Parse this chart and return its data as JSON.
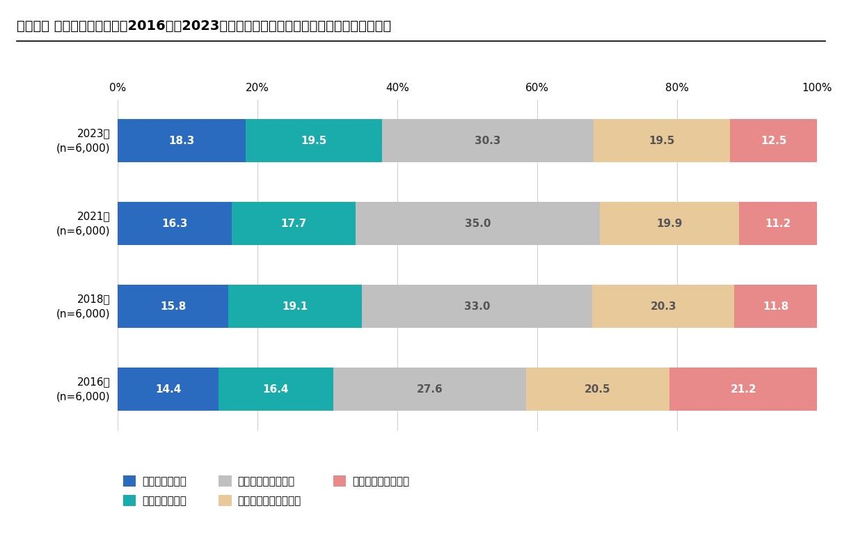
{
  "title": "《個人》 シニアの就労意欲（2016年～2023年の推移）　　（単一回答）《対象者：全員》",
  "years": [
    "2023年\n(n=6,000)",
    "2021年\n(n=6,000)",
    "2018年\n(n=6,000)",
    "2016年\n(n=6,000)"
  ],
  "categories": [
    "ぜひ就労したい",
    "やや就労したい",
    "どちらともいえない",
    "あまり就労したくない",
    "全く就労したくない"
  ],
  "colors": [
    "#2b6bbf",
    "#1aacaa",
    "#c0c0c0",
    "#e8c99a",
    "#e88a8a"
  ],
  "data": [
    [
      18.3,
      19.5,
      30.3,
      19.5,
      12.5
    ],
    [
      16.3,
      17.7,
      35.0,
      19.9,
      11.2
    ],
    [
      15.8,
      19.1,
      33.0,
      20.3,
      11.8
    ],
    [
      14.4,
      16.4,
      27.6,
      20.5,
      21.2
    ]
  ],
  "background_color": "#ffffff",
  "bar_height": 0.52,
  "xlim": [
    0,
    100
  ],
  "xticks": [
    0,
    20,
    40,
    60,
    80,
    100
  ],
  "xticklabels": [
    "0%",
    "20%",
    "40%",
    "60%",
    "80%",
    "100%"
  ],
  "title_fontsize": 14,
  "tick_fontsize": 11,
  "bar_label_fontsize": 11,
  "legend_fontsize": 11
}
